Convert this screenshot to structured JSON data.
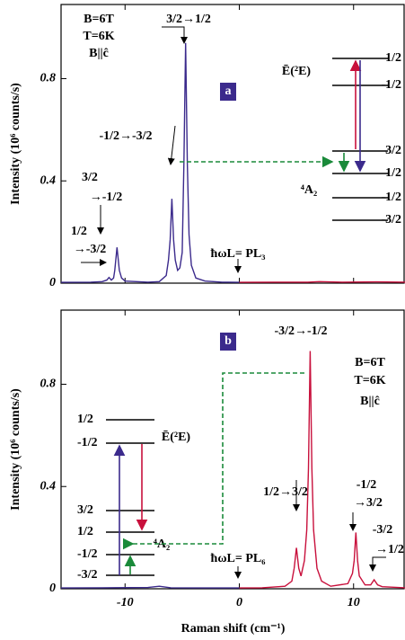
{
  "chart_data": [
    {
      "type": "line",
      "panel": "a",
      "y_label": "Intensity (10⁶ counts/s)",
      "xlim": [
        -15.6,
        14.5
      ],
      "ylim": [
        0,
        1.09
      ],
      "xticks": [
        -10,
        0,
        10
      ],
      "yticks": [
        0,
        0.4,
        0.8
      ],
      "series": [
        {
          "name": "anti-Stokes",
          "color": "#3b2a8c",
          "x": [
            -15.6,
            -13,
            -12,
            -11.6,
            -11.4,
            -11.2,
            -11.0,
            -10.9,
            -10.7,
            -10.5,
            -10.3,
            -10.0,
            -8,
            -7,
            -6.4,
            -6.2,
            -6.05,
            -5.9,
            -5.75,
            -5.6,
            -5.4,
            -5.2,
            -5.0,
            -4.85,
            -4.7,
            -4.55,
            -4.4,
            -4.2,
            -3.8,
            -3,
            -1.5,
            0
          ],
          "values": [
            0.003,
            0.004,
            0.006,
            0.012,
            0.022,
            0.012,
            0.02,
            0.05,
            0.14,
            0.05,
            0.02,
            0.008,
            0.004,
            0.006,
            0.03,
            0.09,
            0.17,
            0.33,
            0.17,
            0.09,
            0.05,
            0.06,
            0.12,
            0.47,
            0.94,
            0.47,
            0.19,
            0.07,
            0.02,
            0.008,
            0.004,
            0.003
          ]
        },
        {
          "name": "Stokes",
          "color": "#c8103c",
          "x": [
            0,
            3,
            6,
            7,
            9,
            12,
            14.5
          ],
          "values": [
            0.003,
            0.004,
            0.004,
            0.006,
            0.004,
            0.005,
            0.004
          ]
        }
      ],
      "annotations": [
        "B=6T",
        "T=6K",
        "B||ĉ",
        "3/2→1/2",
        "-1/2→-3/2",
        "3/2",
        "→-1/2",
        "1/2",
        "→-3/2",
        "ħωL= PL₃"
      ],
      "levels": [
        "1/2",
        "-1/2",
        "3/2",
        "1/2",
        "-1/2",
        "-3/2"
      ],
      "states": [
        "Ē(²E)",
        "⁴A₂"
      ]
    },
    {
      "type": "line",
      "panel": "b",
      "y_label": "Intensity (10⁶ counts/s)",
      "x_label": "Raman shift (cm⁻¹)",
      "xlim": [
        -15.6,
        14.5
      ],
      "ylim": [
        0,
        1.09
      ],
      "xticks": [
        -10,
        0,
        10
      ],
      "yticks": [
        0,
        0.4,
        0.8
      ],
      "series": [
        {
          "name": "anti-Stokes",
          "color": "#3b2a8c",
          "x": [
            -15.6,
            -12,
            -8,
            -7,
            -6,
            -3,
            0
          ],
          "values": [
            0.003,
            0.004,
            0.005,
            0.01,
            0.004,
            0.003,
            0.003
          ]
        },
        {
          "name": "Stokes",
          "color": "#c8103c",
          "x": [
            0,
            2,
            4,
            4.6,
            4.8,
            5.0,
            5.2,
            5.4,
            5.7,
            5.9,
            6.05,
            6.2,
            6.35,
            6.5,
            6.8,
            7.2,
            8,
            9.5,
            9.9,
            10.05,
            10.2,
            10.35,
            10.5,
            11,
            11.5,
            11.8,
            12.1,
            12.5,
            14.5
          ],
          "values": [
            0.003,
            0.004,
            0.01,
            0.03,
            0.08,
            0.16,
            0.08,
            0.05,
            0.11,
            0.23,
            0.47,
            0.93,
            0.47,
            0.23,
            0.08,
            0.03,
            0.01,
            0.02,
            0.06,
            0.11,
            0.22,
            0.11,
            0.05,
            0.015,
            0.015,
            0.035,
            0.015,
            0.008,
            0.004
          ]
        }
      ],
      "annotations": [
        "-3/2→-1/2",
        "B=6T",
        "T=6K",
        "B||ĉ",
        "1/2→3/2",
        "-1/2",
        "→3/2",
        "-3/2",
        "→1/2",
        "ħωL= PL₆"
      ],
      "levels": [
        "1/2",
        "-1/2",
        "3/2",
        "1/2",
        "-1/2",
        "-3/2"
      ],
      "states": [
        "Ē(²E)",
        "⁴A₂"
      ]
    }
  ]
}
